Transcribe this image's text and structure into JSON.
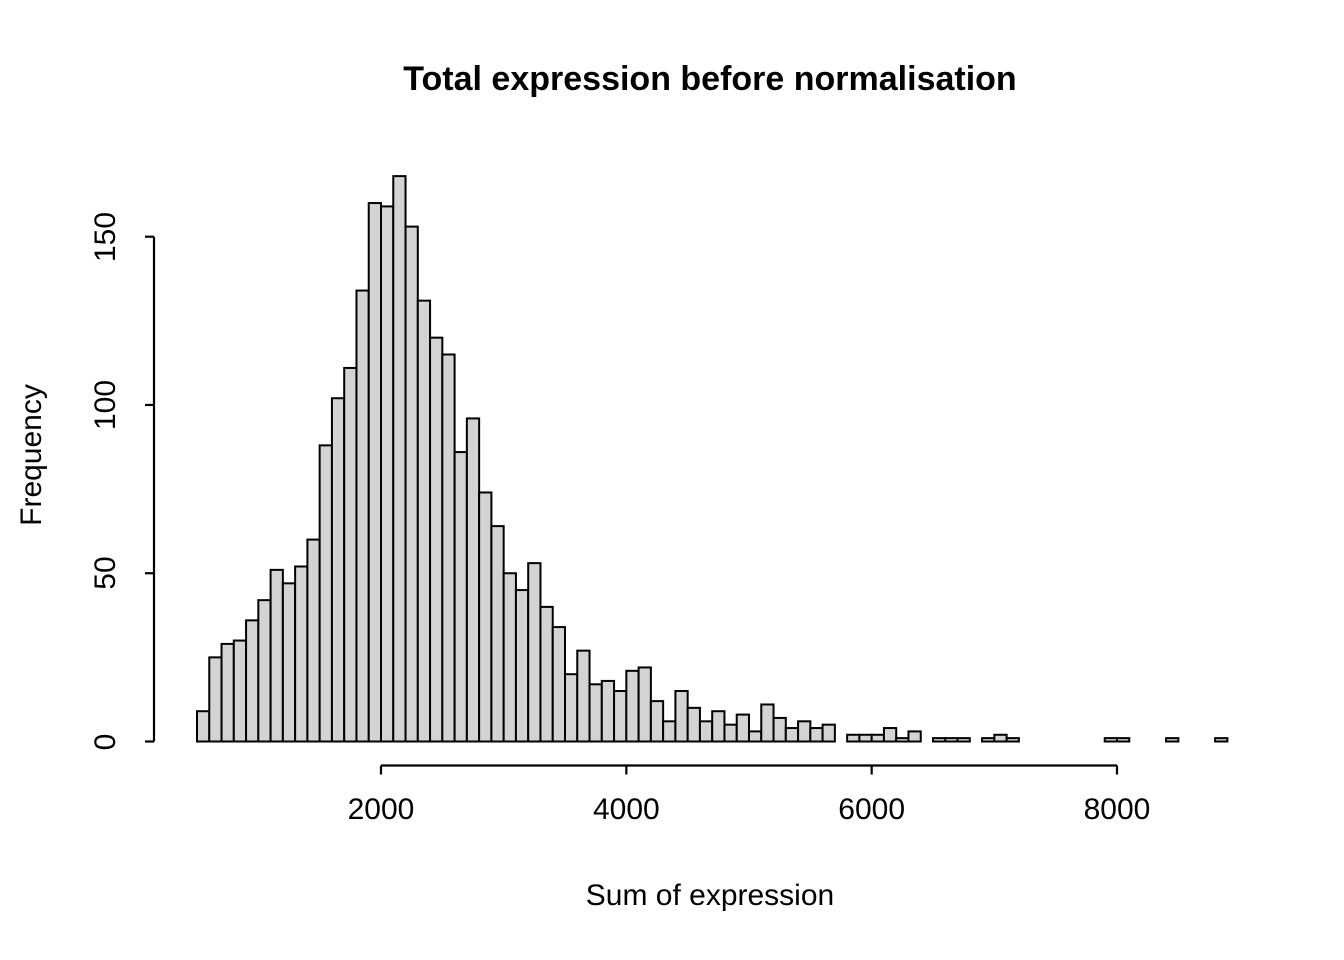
{
  "title": "Total expression before normalisation",
  "chart_data": {
    "type": "bar",
    "subtype": "histogram",
    "title": "Total expression before normalisation",
    "xlabel": "Sum of expression",
    "ylabel": "Frequency",
    "bin_start": 500,
    "bin_width": 100,
    "bins_domain": [
      500,
      8900
    ],
    "counts": [
      9,
      25,
      29,
      30,
      36,
      42,
      51,
      47,
      52,
      60,
      88,
      102,
      111,
      134,
      160,
      159,
      168,
      153,
      131,
      120,
      115,
      86,
      96,
      74,
      64,
      50,
      45,
      53,
      40,
      34,
      20,
      27,
      17,
      18,
      15,
      21,
      22,
      12,
      6,
      15,
      10,
      6,
      9,
      5,
      8,
      3,
      11,
      7,
      4,
      6,
      4,
      5,
      0,
      2,
      2,
      2,
      4,
      1,
      3,
      0,
      1,
      1,
      1,
      0,
      1,
      2,
      1,
      0,
      0,
      0,
      0,
      0,
      0,
      0,
      1,
      1,
      0,
      0,
      0,
      1,
      0,
      0,
      0,
      1
    ],
    "xticks": [
      2000,
      4000,
      6000,
      8000
    ],
    "yticks": [
      0,
      50,
      100,
      150
    ],
    "ylim": [
      0,
      168
    ],
    "grid": false,
    "legend": null,
    "bar_fill": "#d3d3d3",
    "bar_stroke": "#000000",
    "axis_color": "#000000",
    "background": "#ffffff"
  }
}
